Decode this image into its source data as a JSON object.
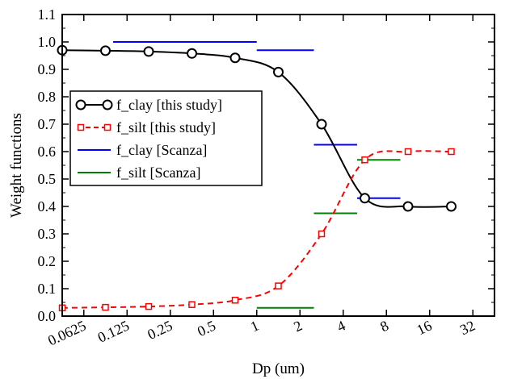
{
  "chart_data": {
    "type": "line",
    "xlabel": "Dp (um)",
    "ylabel": "Weight functions",
    "x_scale": "log2",
    "xlim": [
      0.0441942,
      45.254834
    ],
    "ylim": [
      0.0,
      1.1
    ],
    "x_ticks": [
      0.0625,
      0.125,
      0.25,
      0.5,
      1,
      2,
      4,
      8,
      16,
      32
    ],
    "x_tick_labels": [
      "0.0625",
      "0.125",
      "0.25",
      "0.5",
      "1",
      "2",
      "4",
      "8",
      "16",
      "32"
    ],
    "y_ticks": [
      0.0,
      0.1,
      0.2,
      0.3,
      0.4,
      0.5,
      0.6,
      0.7,
      0.8,
      0.9,
      1.0,
      1.1
    ],
    "y_tick_labels": [
      "0.0",
      "0.1",
      "0.2",
      "0.3",
      "0.4",
      "0.5",
      "0.6",
      "0.7",
      "0.8",
      "0.9",
      "1.0",
      "1.1"
    ],
    "legend_position": "middle-left",
    "series": [
      {
        "name": "f_clay [this study]",
        "kind": "line-markers",
        "marker": "circle",
        "color": "#000000",
        "dashed": false,
        "x": [
          0.0442,
          0.0884,
          0.1768,
          0.3536,
          0.7071,
          1.4142,
          2.8284,
          5.6569,
          11.3137,
          22.6274
        ],
        "y": [
          0.97,
          0.968,
          0.965,
          0.958,
          0.942,
          0.89,
          0.7,
          0.43,
          0.4,
          0.4
        ]
      },
      {
        "name": "f_silt [this study]",
        "kind": "line-markers",
        "marker": "square",
        "color": "#ff0000",
        "dashed": true,
        "x": [
          0.0442,
          0.0884,
          0.1768,
          0.3536,
          0.7071,
          1.4142,
          2.8284,
          5.6569,
          11.3137,
          22.6274
        ],
        "y": [
          0.03,
          0.032,
          0.035,
          0.042,
          0.058,
          0.11,
          0.3,
          0.57,
          0.6,
          0.6
        ]
      },
      {
        "name": "f_clay [Scanza]",
        "kind": "segments",
        "color": "#0000ff",
        "segments": [
          {
            "x": [
              0.1,
              1.0
            ],
            "y": 1.0
          },
          {
            "x": [
              1.0,
              2.5
            ],
            "y": 0.97
          },
          {
            "x": [
              2.5,
              5.0
            ],
            "y": 0.625
          },
          {
            "x": [
              5.0,
              10.0
            ],
            "y": 0.43
          }
        ]
      },
      {
        "name": "f_silt [Scanza]",
        "kind": "segments",
        "color": "#008000",
        "segments": [
          {
            "x": [
              0.1,
              1.0
            ],
            "y": 0.0
          },
          {
            "x": [
              1.0,
              2.5
            ],
            "y": 0.03
          },
          {
            "x": [
              2.5,
              5.0
            ],
            "y": 0.375
          },
          {
            "x": [
              5.0,
              10.0
            ],
            "y": 0.57
          }
        ]
      }
    ]
  }
}
